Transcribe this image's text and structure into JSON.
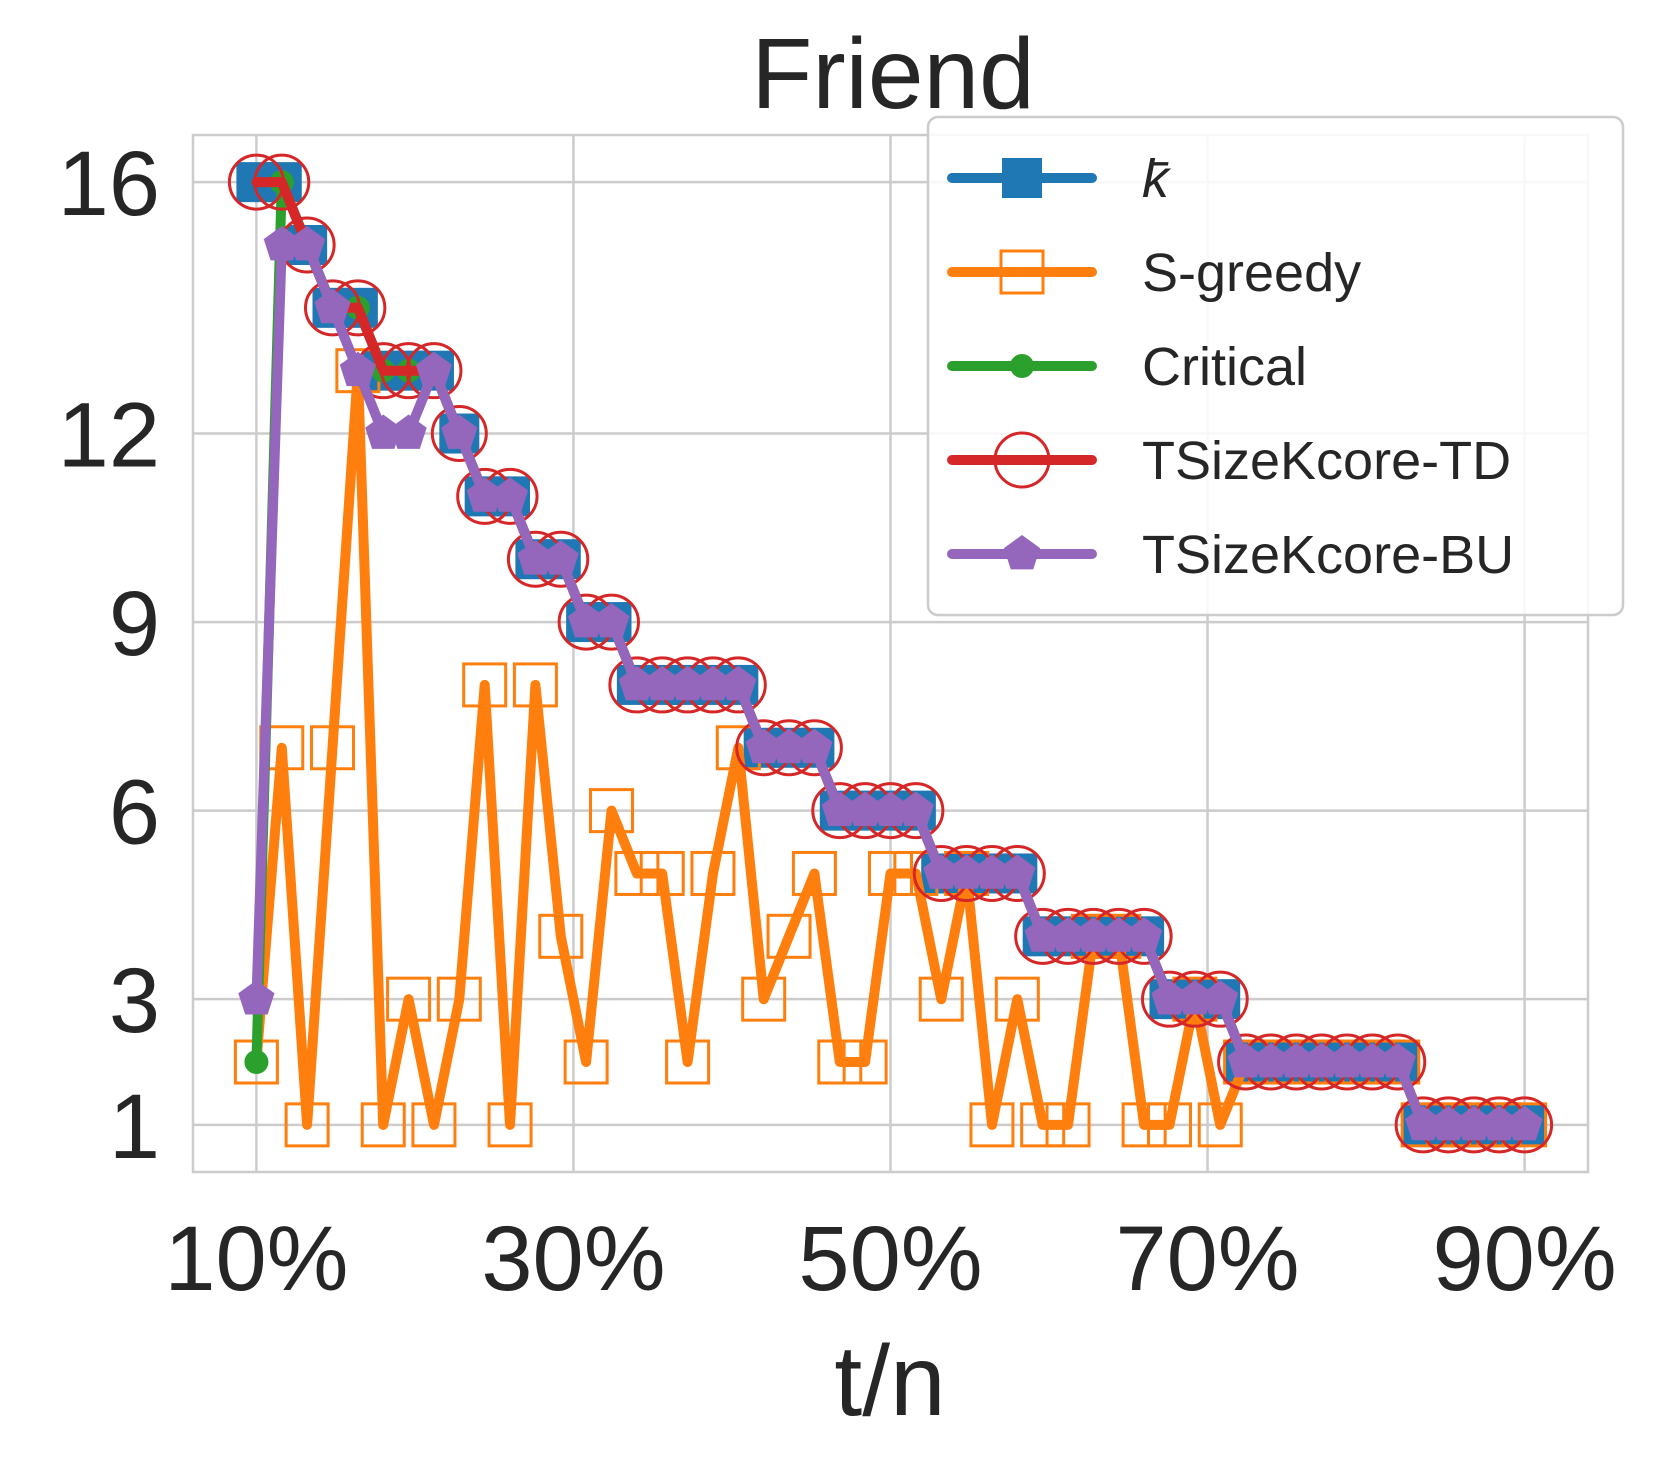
{
  "chart_data": {
    "type": "line",
    "title": "Friend",
    "xlabel": "t/n",
    "ylabel": "",
    "xlim": [
      0.06,
      0.94
    ],
    "ylim": [
      0.25,
      16.75
    ],
    "x_ticks": [
      {
        "value": 0.1,
        "label": "10%"
      },
      {
        "value": 0.3,
        "label": "30%"
      },
      {
        "value": 0.5,
        "label": "50%"
      },
      {
        "value": 0.7,
        "label": "70%"
      },
      {
        "value": 0.9,
        "label": "90%"
      }
    ],
    "y_ticks": [
      {
        "value": 1,
        "label": "1"
      },
      {
        "value": 3,
        "label": "3"
      },
      {
        "value": 6,
        "label": "6"
      },
      {
        "value": 9,
        "label": "9"
      },
      {
        "value": 12,
        "label": "12"
      },
      {
        "value": 16,
        "label": "16"
      }
    ],
    "grid": true,
    "legend_position": "top-right",
    "series": [
      {
        "name": "k̄",
        "color": "#1f77b4",
        "marker": "filled-square",
        "x": [
          0.1,
          0.116,
          0.132,
          0.148,
          0.164,
          0.18,
          0.196,
          0.212,
          0.228,
          0.244,
          0.26,
          0.276,
          0.292,
          0.308,
          0.324,
          0.34,
          0.356,
          0.372,
          0.388,
          0.404,
          0.42,
          0.436,
          0.452,
          0.468,
          0.484,
          0.5,
          0.516,
          0.532,
          0.548,
          0.564,
          0.58,
          0.596,
          0.612,
          0.628,
          0.644,
          0.66,
          0.676,
          0.692,
          0.708,
          0.724,
          0.74,
          0.756,
          0.772,
          0.788,
          0.804,
          0.82,
          0.836,
          0.852,
          0.868,
          0.884,
          0.9
        ],
        "values": [
          16,
          16,
          15,
          14,
          14,
          13,
          13,
          13,
          12,
          11,
          11,
          10,
          10,
          9,
          9,
          8,
          8,
          8,
          8,
          8,
          7,
          7,
          7,
          6,
          6,
          6,
          6,
          5,
          5,
          5,
          5,
          4,
          4,
          4,
          4,
          4,
          3,
          3,
          3,
          2,
          2,
          2,
          2,
          2,
          2,
          2,
          1,
          1,
          1,
          1,
          1
        ]
      },
      {
        "name": "S-greedy",
        "color": "#ff7f0e",
        "marker": "open-square",
        "x": [
          0.1,
          0.116,
          0.132,
          0.148,
          0.164,
          0.18,
          0.196,
          0.212,
          0.228,
          0.244,
          0.26,
          0.276,
          0.292,
          0.308,
          0.324,
          0.34,
          0.356,
          0.372,
          0.388,
          0.404,
          0.42,
          0.436,
          0.452,
          0.468,
          0.484,
          0.5,
          0.516,
          0.532,
          0.548,
          0.564,
          0.58,
          0.596,
          0.612,
          0.628,
          0.644,
          0.66,
          0.676,
          0.692,
          0.708,
          0.724,
          0.74,
          0.756,
          0.772,
          0.788,
          0.804,
          0.82,
          0.836,
          0.852,
          0.868,
          0.884,
          0.9
        ],
        "values": [
          2,
          7,
          1,
          7,
          13,
          1,
          3,
          1,
          3,
          8,
          1,
          8,
          4,
          2,
          6,
          5,
          5,
          2,
          5,
          7,
          3,
          4,
          5,
          2,
          2,
          5,
          5,
          3,
          5,
          1,
          3,
          1,
          1,
          4,
          4,
          1,
          1,
          3,
          1,
          2,
          2,
          2,
          2,
          2,
          2,
          2,
          1,
          1,
          1,
          1,
          1
        ]
      },
      {
        "name": "Critical",
        "color": "#2ca02c",
        "marker": "dot",
        "x": [
          0.1,
          0.116,
          0.132,
          0.148,
          0.164,
          0.18,
          0.196,
          0.212,
          0.228,
          0.244,
          0.26,
          0.276,
          0.292,
          0.308,
          0.324,
          0.34,
          0.356,
          0.372,
          0.388,
          0.404,
          0.42,
          0.436,
          0.452,
          0.468,
          0.484,
          0.5,
          0.516,
          0.532,
          0.548,
          0.564,
          0.58,
          0.596,
          0.612,
          0.628,
          0.644,
          0.66,
          0.676,
          0.692,
          0.708,
          0.724,
          0.74,
          0.756,
          0.772,
          0.788,
          0.804,
          0.82,
          0.836,
          0.852,
          0.868,
          0.884,
          0.9
        ],
        "values": [
          2,
          16,
          15,
          14,
          14,
          13,
          13,
          13,
          12,
          11,
          11,
          10,
          10,
          9,
          9,
          8,
          8,
          8,
          8,
          8,
          7,
          7,
          7,
          6,
          6,
          6,
          6,
          5,
          5,
          5,
          5,
          4,
          4,
          4,
          4,
          4,
          3,
          3,
          3,
          2,
          2,
          2,
          2,
          2,
          2,
          2,
          1,
          1,
          1,
          1,
          1
        ]
      },
      {
        "name": "TSizeKcore-TD",
        "color": "#d62728",
        "marker": "open-circle",
        "x": [
          0.1,
          0.116,
          0.132,
          0.148,
          0.164,
          0.18,
          0.196,
          0.212,
          0.228,
          0.244,
          0.26,
          0.276,
          0.292,
          0.308,
          0.324,
          0.34,
          0.356,
          0.372,
          0.388,
          0.404,
          0.42,
          0.436,
          0.452,
          0.468,
          0.484,
          0.5,
          0.516,
          0.532,
          0.548,
          0.564,
          0.58,
          0.596,
          0.612,
          0.628,
          0.644,
          0.66,
          0.676,
          0.692,
          0.708,
          0.724,
          0.74,
          0.756,
          0.772,
          0.788,
          0.804,
          0.82,
          0.836,
          0.852,
          0.868,
          0.884,
          0.9
        ],
        "values": [
          16,
          16,
          15,
          14,
          14,
          13,
          13,
          13,
          12,
          11,
          11,
          10,
          10,
          9,
          9,
          8,
          8,
          8,
          8,
          8,
          7,
          7,
          7,
          6,
          6,
          6,
          6,
          5,
          5,
          5,
          5,
          4,
          4,
          4,
          4,
          4,
          3,
          3,
          3,
          2,
          2,
          2,
          2,
          2,
          2,
          2,
          1,
          1,
          1,
          1,
          1
        ]
      },
      {
        "name": "TSizeKcore-BU",
        "color": "#9467bd",
        "marker": "pentagon",
        "x": [
          0.1,
          0.116,
          0.132,
          0.148,
          0.164,
          0.18,
          0.196,
          0.212,
          0.228,
          0.244,
          0.26,
          0.276,
          0.292,
          0.308,
          0.324,
          0.34,
          0.356,
          0.372,
          0.388,
          0.404,
          0.42,
          0.436,
          0.452,
          0.468,
          0.484,
          0.5,
          0.516,
          0.532,
          0.548,
          0.564,
          0.58,
          0.596,
          0.612,
          0.628,
          0.644,
          0.66,
          0.676,
          0.692,
          0.708,
          0.724,
          0.74,
          0.756,
          0.772,
          0.788,
          0.804,
          0.82,
          0.836,
          0.852,
          0.868,
          0.884,
          0.9
        ],
        "values": [
          3,
          15,
          15,
          14,
          13,
          12,
          12,
          13,
          12,
          11,
          11,
          10,
          10,
          9,
          9,
          8,
          8,
          8,
          8,
          8,
          7,
          7,
          7,
          6,
          6,
          6,
          6,
          5,
          5,
          5,
          5,
          4,
          4,
          4,
          4,
          4,
          3,
          3,
          3,
          2,
          2,
          2,
          2,
          2,
          2,
          2,
          1,
          1,
          1,
          1,
          1
        ]
      }
    ]
  }
}
